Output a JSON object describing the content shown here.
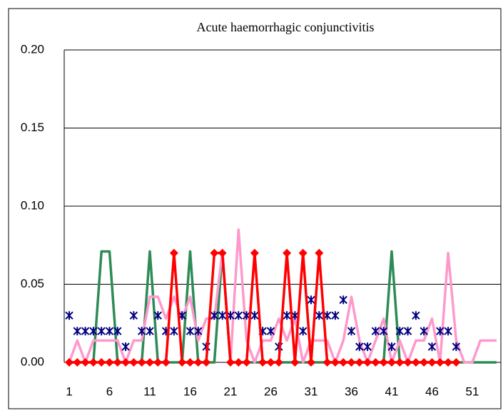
{
  "chart_data": {
    "type": "line",
    "title": "Acute haemorrhagic conjunctivitis",
    "categories": [
      "1",
      null,
      null,
      null,
      null,
      "6",
      null,
      null,
      null,
      null,
      "11",
      null,
      null,
      null,
      null,
      "16",
      null,
      null,
      null,
      null,
      "21",
      null,
      null,
      null,
      null,
      "26",
      null,
      null,
      null,
      null,
      "31",
      null,
      null,
      null,
      null,
      "36",
      null,
      null,
      null,
      null,
      "41",
      null,
      null,
      null,
      null,
      "46",
      null,
      null,
      null,
      null,
      "51",
      null,
      null,
      null
    ],
    "series": [
      {
        "color": "#2e8b57",
        "line": true,
        "marker": "none",
        "values": [
          0,
          0,
          0,
          0,
          0.071,
          0.071,
          0,
          0,
          0,
          0,
          0.071,
          0,
          0,
          0,
          0,
          0.071,
          0,
          0,
          0,
          0.071,
          0,
          0,
          0,
          0,
          0,
          0,
          0,
          0,
          0,
          0,
          0,
          0,
          0,
          0,
          0,
          0,
          0,
          0,
          0,
          0,
          0.071,
          0,
          0,
          0,
          0,
          0,
          0,
          0,
          0,
          0,
          0,
          0,
          0,
          0
        ]
      },
      {
        "color": "#ff99cc",
        "line": true,
        "marker": "none",
        "values": [
          0,
          0.014,
          0,
          0.014,
          0.014,
          0.014,
          0.014,
          0,
          0.014,
          0.014,
          0.042,
          0.042,
          0.028,
          0.042,
          0.028,
          0.042,
          0.014,
          0.028,
          0.028,
          0.071,
          0,
          0.085,
          0.014,
          0,
          0.014,
          0.014,
          0.028,
          0.014,
          0.028,
          0,
          0.014,
          0.014,
          0.014,
          0,
          0.014,
          0.042,
          0.014,
          0,
          0.014,
          0.028,
          0,
          0.014,
          0,
          0.014,
          0.014,
          0.028,
          0,
          0.07,
          0.014,
          0,
          0,
          0.014,
          0.014,
          0.014
        ]
      },
      {
        "color": "#000080",
        "line": false,
        "marker": "asterisk",
        "values": [
          0.03,
          0.02,
          0.02,
          0.02,
          0.02,
          0.02,
          0.02,
          0.01,
          0.03,
          0.02,
          0.02,
          0.03,
          0.02,
          0.02,
          0.03,
          0.02,
          0.02,
          0.01,
          0.03,
          0.03,
          0.03,
          0.03,
          0.03,
          0.03,
          0.02,
          0.02,
          0.01,
          0.03,
          0.03,
          0.02,
          0.04,
          0.03,
          0.03,
          0.03,
          0.04,
          0.02,
          0.01,
          0.01,
          0.02,
          0.02,
          0.01,
          0.02,
          0.02,
          0.03,
          0.02,
          0.01,
          0.02,
          0.02,
          0.01,
          null,
          null,
          null,
          null,
          null
        ]
      },
      {
        "color": "#ff0000",
        "line": true,
        "marker": "diamond",
        "values": [
          0,
          0,
          0,
          0,
          0,
          0,
          0,
          0,
          0,
          0,
          0,
          0,
          0,
          0.07,
          0,
          0,
          0,
          0,
          0.07,
          0.07,
          0,
          0,
          0,
          0.07,
          0,
          0,
          0,
          0.07,
          0,
          0.07,
          0,
          0.07,
          0,
          0,
          0,
          0,
          0,
          0,
          0,
          0,
          0,
          0,
          0,
          0,
          0,
          0,
          0,
          0,
          0,
          null,
          null,
          null,
          null,
          null
        ]
      }
    ],
    "ylim": [
      0,
      0.2
    ],
    "yticks": [
      {
        "value": 0,
        "label": "0.00"
      },
      {
        "value": 0.05,
        "label": "0.05"
      },
      {
        "value": 0.1,
        "label": "0.10"
      },
      {
        "value": 0.15,
        "label": "0.15"
      },
      {
        "value": 0.2,
        "label": "0.20"
      }
    ],
    "grid": true
  }
}
